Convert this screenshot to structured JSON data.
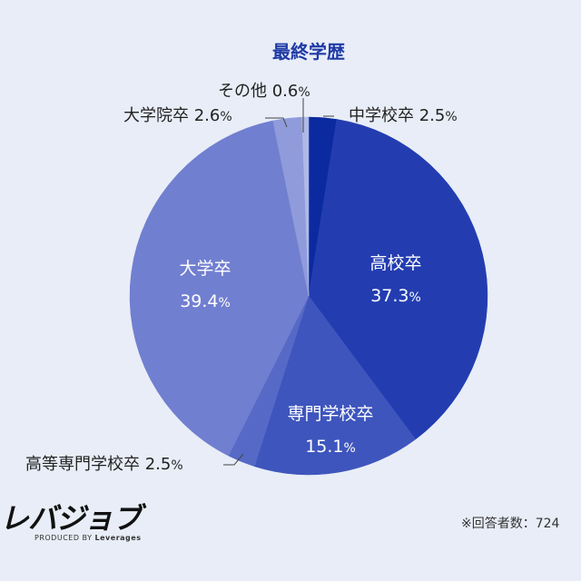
{
  "chart_data": {
    "type": "pie",
    "title": "最終学歴",
    "slices": [
      {
        "label": "中学校卒",
        "value": 2.5,
        "color": "#0b2aa0",
        "display": "2.5",
        "label_position": "outside"
      },
      {
        "label": "高校卒",
        "value": 37.3,
        "color": "#233db1",
        "display": "37.3",
        "label_position": "inside"
      },
      {
        "label": "専門学校卒",
        "value": 15.1,
        "color": "#3e55bd",
        "display": "15.1",
        "label_position": "inside"
      },
      {
        "label": "高等専門学校卒",
        "value": 2.5,
        "color": "#5669c6",
        "display": "2.5",
        "label_position": "outside"
      },
      {
        "label": "大学卒",
        "value": 39.4,
        "color": "#717fd0",
        "display": "39.4",
        "label_position": "inside"
      },
      {
        "label": "大学院卒",
        "value": 2.6,
        "color": "#8f9bdb",
        "display": "2.6",
        "label_position": "outside"
      },
      {
        "label": "その他",
        "value": 0.6,
        "color": "#b0b9e6",
        "display": "0.6",
        "label_position": "outside"
      }
    ],
    "unit": "%"
  },
  "brand": {
    "logo_text": "レバジョブ",
    "produced_by": "PRODUCED BY",
    "company": "Leverages"
  },
  "footnote": "※回答者数：724"
}
